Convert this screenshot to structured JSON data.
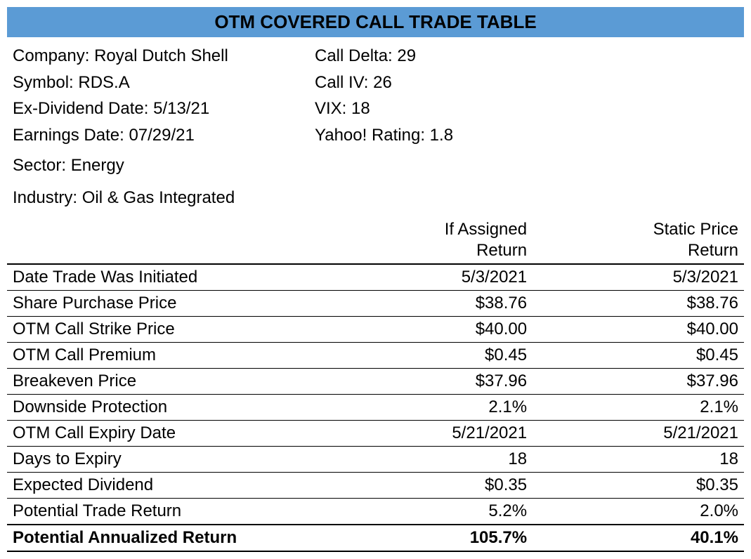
{
  "title": "OTM COVERED CALL TRADE TABLE",
  "info": {
    "left": [
      {
        "label": "Company:",
        "value": "Royal Dutch Shell"
      },
      {
        "label": "Symbol:",
        "value": "RDS.A"
      },
      {
        "label": "Ex-Dividend Date:",
        "value": " 5/13/21"
      },
      {
        "label": "Earnings Date:",
        "value": "07/29/21"
      }
    ],
    "right": [
      {
        "label": "Call Delta:",
        "value": "29"
      },
      {
        "label": "Call IV:",
        "value": "26"
      },
      {
        "label": "VIX:",
        "value": "18"
      },
      {
        "label": "Yahoo! Rating:",
        "value": "1.8"
      }
    ],
    "extra": [
      {
        "label": "Sector:",
        "value": "Energy"
      },
      {
        "label": "Industry:",
        "value": "Oil & Gas Integrated"
      }
    ]
  },
  "table": {
    "columns": {
      "col1_line1": "If Assigned",
      "col1_line2": "Return",
      "col2_line1": "Static Price",
      "col2_line2": "Return"
    },
    "rows": [
      {
        "label": "Date Trade Was Initiated",
        "c1": "5/3/2021",
        "c2": "5/3/2021"
      },
      {
        "label": "Share Purchase Price",
        "c1": "$38.76",
        "c2": "$38.76"
      },
      {
        "label": "OTM Call Strike Price",
        "c1": "$40.00",
        "c2": "$40.00"
      },
      {
        "label": "OTM Call Premium",
        "c1": "$0.45",
        "c2": "$0.45"
      },
      {
        "label": "Breakeven Price",
        "c1": "$37.96",
        "c2": "$37.96"
      },
      {
        "label": "Downside Protection",
        "c1": "2.1%",
        "c2": "2.1%"
      },
      {
        "label": "OTM Call Expiry Date",
        "c1": "5/21/2021",
        "c2": "5/21/2021"
      },
      {
        "label": "Days to Expiry",
        "c1": "18",
        "c2": "18"
      },
      {
        "label": "Expected Dividend",
        "c1": "$0.35",
        "c2": "$0.35"
      },
      {
        "label": "Potential Trade Return",
        "c1": "5.2%",
        "c2": "2.0%"
      },
      {
        "label": "Potential Annualized Return",
        "c1": "105.7%",
        "c2": "40.1%"
      }
    ],
    "styling": {
      "header_bg": "#5b9bd5",
      "text_color": "#000000",
      "border_color": "#000000",
      "font_family": "Arial",
      "title_fontsize": 26,
      "body_fontsize": 24,
      "thick_border_width": 2,
      "thin_border_width": 1
    }
  }
}
